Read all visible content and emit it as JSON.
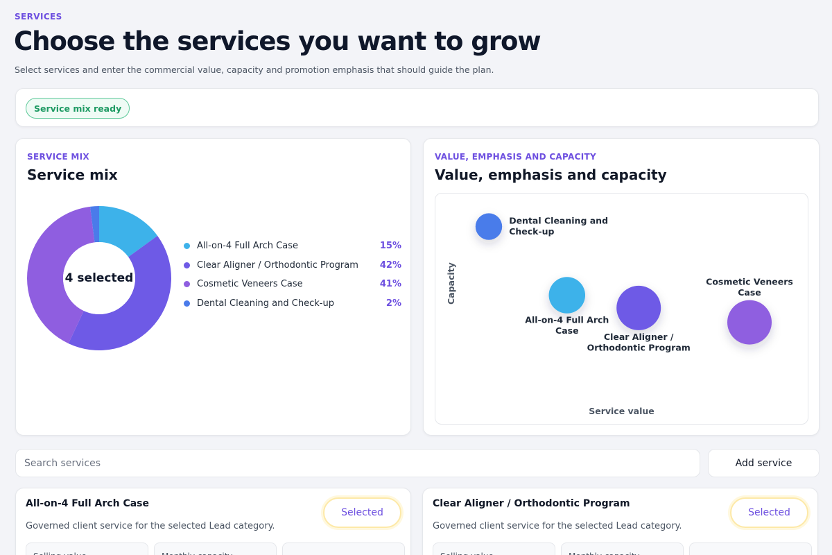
{
  "header": {
    "eyebrow": "SERVICES",
    "title": "Choose the services you want to grow",
    "subtitle": "Select services and enter the commercial value, capacity and promotion emphasis that should guide the plan."
  },
  "status": {
    "label": "Service mix ready"
  },
  "mix": {
    "eyebrow": "SERVICE MIX",
    "title": "Service mix",
    "center_label": "4 selected",
    "legend": [
      {
        "label": "All-on-4 Full Arch Case",
        "pct": "15%",
        "color": "#3db2ea"
      },
      {
        "label": "Clear Aligner / Orthodontic Program",
        "pct": "42%",
        "color": "#6e5ae6"
      },
      {
        "label": "Cosmetic Veneers Case",
        "pct": "41%",
        "color": "#8f5ee0"
      },
      {
        "label": "Dental Cleaning and Check-up",
        "pct": "2%",
        "color": "#4a7bea"
      }
    ]
  },
  "chart_data": [
    {
      "type": "pie",
      "categories": [
        "All-on-4 Full Arch Case",
        "Clear Aligner / Orthodontic Program",
        "Cosmetic Veneers Case",
        "Dental Cleaning and Check-up"
      ],
      "values": [
        15,
        42,
        41,
        2
      ],
      "colors": [
        "#3db2ea",
        "#6e5ae6",
        "#8f5ee0",
        "#4a7bea"
      ],
      "center_label": "4 selected",
      "donut": true
    },
    {
      "type": "scatter",
      "title": "Value, emphasis and capacity",
      "xlabel": "Service value",
      "ylabel": "Capacity",
      "points": [
        {
          "label": "Dental Cleaning and Check-up",
          "label_lines": [
            "Dental Cleaning and",
            "Check-up"
          ],
          "x": 0.1,
          "y": 0.88,
          "size": 0.6,
          "color": "#4a7bea",
          "label_pos": "right"
        },
        {
          "label": "All-on-4 Full Arch Case",
          "label_lines": [
            "All-on-4 Full Arch",
            "Case"
          ],
          "x": 0.34,
          "y": 0.45,
          "size": 0.82,
          "color": "#3db2ea",
          "label_pos": "below"
        },
        {
          "label": "Clear Aligner / Orthodontic Program",
          "label_lines": [
            "Clear Aligner /",
            "Orthodontic Program"
          ],
          "x": 0.56,
          "y": 0.37,
          "size": 1.0,
          "color": "#6e5ae6",
          "label_pos": "below"
        },
        {
          "label": "Cosmetic Veneers Case",
          "label_lines": [
            "Cosmetic Veneers",
            "Case"
          ],
          "x": 0.9,
          "y": 0.28,
          "size": 1.0,
          "color": "#8f5ee0",
          "label_pos": "above"
        }
      ]
    }
  ],
  "value": {
    "eyebrow": "VALUE, EMPHASIS AND CAPACITY",
    "title": "Value, emphasis and capacity",
    "xlabel": "Service value",
    "ylabel": "Capacity"
  },
  "search": {
    "placeholder": "Search services"
  },
  "add_button": "Add service",
  "services": [
    {
      "title": "All-on-4 Full Arch Case",
      "description": "Governed client service for the selected Lead category.",
      "button": "Selected",
      "fields": [
        "Selling value",
        "Monthly capacity",
        ""
      ]
    },
    {
      "title": "Clear Aligner / Orthodontic Program",
      "description": "Governed client service for the selected Lead category.",
      "button": "Selected",
      "fields": [
        "Selling value",
        "Monthly capacity",
        ""
      ]
    }
  ]
}
